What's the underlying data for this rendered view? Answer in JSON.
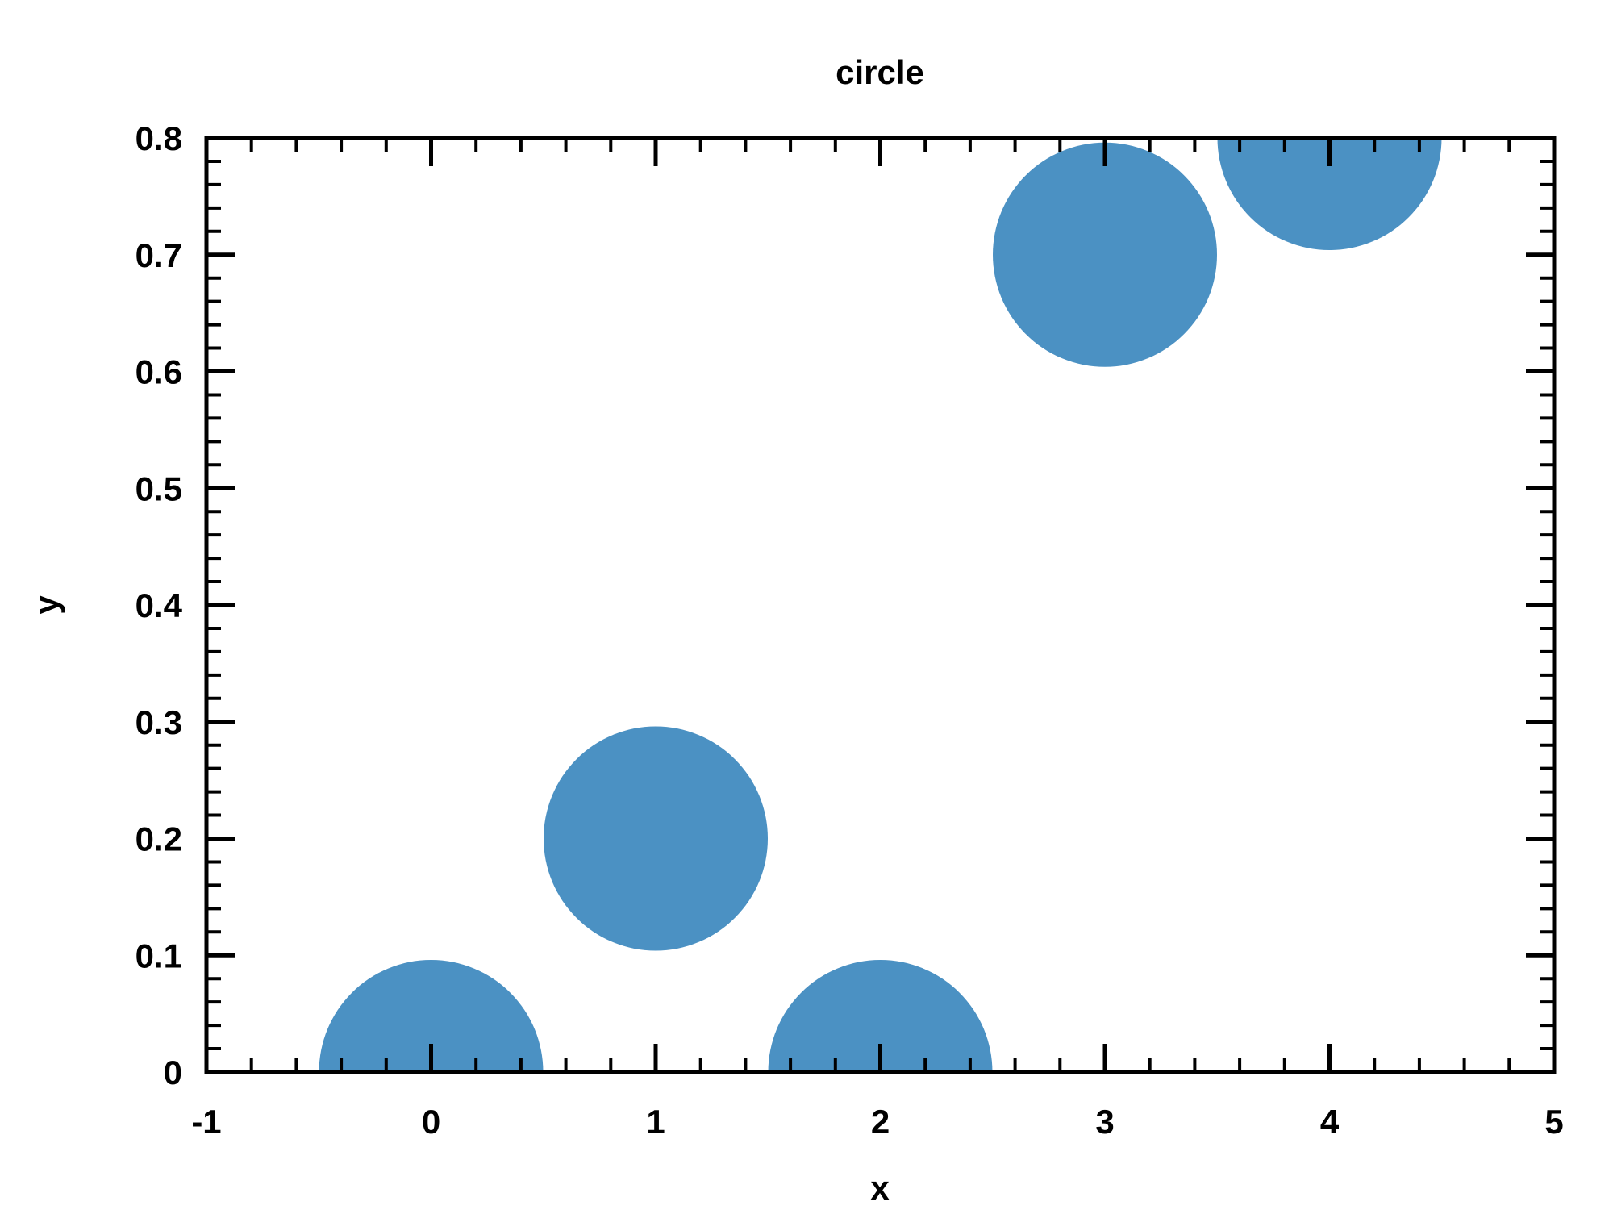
{
  "chart_data": {
    "type": "scatter",
    "title": "circle",
    "xlabel": "x",
    "ylabel": "y",
    "xlim": [
      -1,
      5
    ],
    "ylim": [
      0,
      0.8
    ],
    "x_ticks": [
      -1,
      0,
      1,
      2,
      3,
      4,
      5
    ],
    "x_tick_labels": [
      "-1",
      "0",
      "1",
      "2",
      "3",
      "4",
      "5"
    ],
    "y_ticks": [
      0,
      0.1,
      0.2,
      0.3,
      0.4,
      0.5,
      0.6,
      0.7,
      0.8
    ],
    "y_tick_labels": [
      "0",
      "0.1",
      "0.2",
      "0.3",
      "0.4",
      "0.5",
      "0.6",
      "0.7",
      "0.8"
    ],
    "x_minor_step": 0.2,
    "y_minor_step": 0.02,
    "grid": false,
    "marker": "circle",
    "marker_color": "#4b91c3",
    "series": [
      {
        "x": [
          0,
          1,
          2,
          3,
          4
        ],
        "y": [
          0,
          0.2,
          0,
          0.7,
          0.8
        ]
      }
    ]
  }
}
